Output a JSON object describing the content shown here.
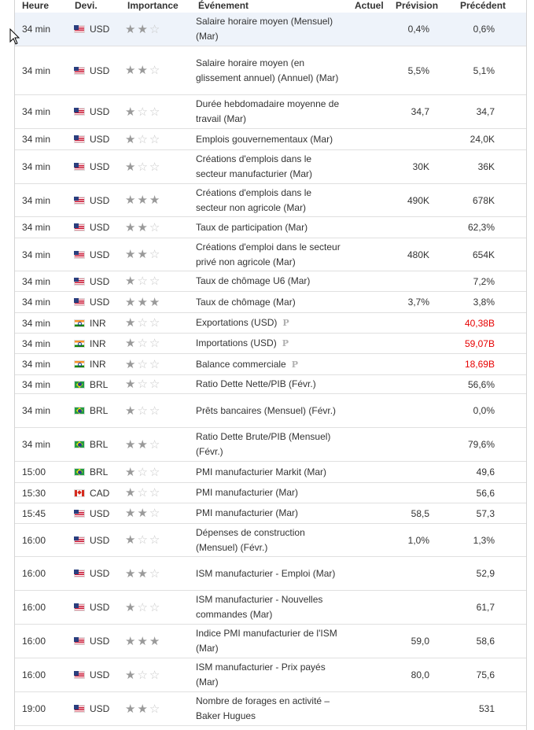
{
  "headers": {
    "time": "Heure",
    "currency": "Devi.",
    "importance": "Importance",
    "event": "Événement",
    "actual": "Actuel",
    "forecast": "Prévision",
    "previous": "Précédent"
  },
  "rows": [
    {
      "time": "34 min",
      "flag": "us",
      "currency": "USD",
      "stars": 2,
      "event": "Salaire horaire moyen (Mensuel) (Mar)",
      "prelim": "",
      "actual": "",
      "forecast": "0,4%",
      "previous": "0,6%",
      "prev_neg": false
    },
    {
      "time": "34 min",
      "flag": "us",
      "currency": "USD",
      "stars": 2,
      "event": "Salaire horaire moyen (en glissement annuel) (Annuel) (Mar)",
      "prelim": "",
      "actual": "",
      "forecast": "5,5%",
      "previous": "5,1%",
      "prev_neg": false
    },
    {
      "time": "34 min",
      "flag": "us",
      "currency": "USD",
      "stars": 1,
      "event": "Durée hebdomadaire moyenne de travail (Mar)",
      "prelim": "",
      "actual": "",
      "forecast": "34,7",
      "previous": "34,7",
      "prev_neg": false
    },
    {
      "time": "34 min",
      "flag": "us",
      "currency": "USD",
      "stars": 1,
      "event": "Emplois gouvernementaux (Mar)",
      "prelim": "",
      "actual": "",
      "forecast": "",
      "previous": "24,0K",
      "prev_neg": false
    },
    {
      "time": "34 min",
      "flag": "us",
      "currency": "USD",
      "stars": 1,
      "event": "Créations d'emplois dans le secteur manufacturier (Mar)",
      "prelim": "",
      "actual": "",
      "forecast": "30K",
      "previous": "36K",
      "prev_neg": false
    },
    {
      "time": "34 min",
      "flag": "us",
      "currency": "USD",
      "stars": 3,
      "event": "Créations d'emplois dans le secteur non agricole (Mar)",
      "prelim": "",
      "actual": "",
      "forecast": "490K",
      "previous": "678K",
      "prev_neg": false
    },
    {
      "time": "34 min",
      "flag": "us",
      "currency": "USD",
      "stars": 2,
      "event": "Taux de participation (Mar)",
      "prelim": "",
      "actual": "",
      "forecast": "",
      "previous": "62,3%",
      "prev_neg": false
    },
    {
      "time": "34 min",
      "flag": "us",
      "currency": "USD",
      "stars": 2,
      "event": "Créations d'emploi dans le secteur privé non agricole (Mar)",
      "prelim": "",
      "actual": "",
      "forecast": "480K",
      "previous": "654K",
      "prev_neg": false
    },
    {
      "time": "34 min",
      "flag": "us",
      "currency": "USD",
      "stars": 1,
      "event": "Taux de chômage U6 (Mar)",
      "prelim": "",
      "actual": "",
      "forecast": "",
      "previous": "7,2%",
      "prev_neg": false
    },
    {
      "time": "34 min",
      "flag": "us",
      "currency": "USD",
      "stars": 3,
      "event": "Taux de chômage (Mar)",
      "prelim": "",
      "actual": "",
      "forecast": "3,7%",
      "previous": "3,8%",
      "prev_neg": false
    },
    {
      "time": "34 min",
      "flag": "in",
      "currency": "INR",
      "stars": 1,
      "event": "Exportations (USD)",
      "prelim": "P",
      "actual": "",
      "forecast": "",
      "previous": "40,38B",
      "prev_neg": true
    },
    {
      "time": "34 min",
      "flag": "in",
      "currency": "INR",
      "stars": 1,
      "event": "Importations (USD)",
      "prelim": "P",
      "actual": "",
      "forecast": "",
      "previous": "59,07B",
      "prev_neg": true
    },
    {
      "time": "34 min",
      "flag": "in",
      "currency": "INR",
      "stars": 1,
      "event": "Balance commerciale",
      "prelim": "P",
      "actual": "",
      "forecast": "",
      "previous": "18,69B",
      "prev_neg": true
    },
    {
      "time": "34 min",
      "flag": "br",
      "currency": "BRL",
      "stars": 1,
      "event": "Ratio Dette Nette/PIB (Févr.)",
      "prelim": "",
      "actual": "",
      "forecast": "",
      "previous": "56,6%",
      "prev_neg": false
    },
    {
      "time": "34 min",
      "flag": "br",
      "currency": "BRL",
      "stars": 1,
      "event": "Prêts bancaires (Mensuel) (Févr.)",
      "prelim": "",
      "actual": "",
      "forecast": "",
      "previous": "0,0%",
      "prev_neg": false
    },
    {
      "time": "34 min",
      "flag": "br",
      "currency": "BRL",
      "stars": 2,
      "event": "Ratio Dette Brute/PIB (Mensuel) (Févr.)",
      "prelim": "",
      "actual": "",
      "forecast": "",
      "previous": "79,6%",
      "prev_neg": false
    },
    {
      "time": "15:00",
      "flag": "br",
      "currency": "BRL",
      "stars": 1,
      "event": "PMI manufacturier Markit (Mar)",
      "prelim": "",
      "actual": "",
      "forecast": "",
      "previous": "49,6",
      "prev_neg": false
    },
    {
      "time": "15:30",
      "flag": "ca",
      "currency": "CAD",
      "stars": 1,
      "event": "PMI manufacturier (Mar)",
      "prelim": "",
      "actual": "",
      "forecast": "",
      "previous": "56,6",
      "prev_neg": false
    },
    {
      "time": "15:45",
      "flag": "us",
      "currency": "USD",
      "stars": 2,
      "event": "PMI manufacturier (Mar)",
      "prelim": "",
      "actual": "",
      "forecast": "58,5",
      "previous": "57,3",
      "prev_neg": false
    },
    {
      "time": "16:00",
      "flag": "us",
      "currency": "USD",
      "stars": 1,
      "event": "Dépenses de construction (Mensuel) (Févr.)",
      "prelim": "",
      "actual": "",
      "forecast": "1,0%",
      "previous": "1,3%",
      "prev_neg": false
    },
    {
      "time": "16:00",
      "flag": "us",
      "currency": "USD",
      "stars": 2,
      "event": "ISM manufacturier - Emploi (Mar)",
      "prelim": "",
      "actual": "",
      "forecast": "",
      "previous": "52,9",
      "prev_neg": false
    },
    {
      "time": "16:00",
      "flag": "us",
      "currency": "USD",
      "stars": 1,
      "event": "ISM manufacturier - Nouvelles commandes (Mar)",
      "prelim": "",
      "actual": "",
      "forecast": "",
      "previous": "61,7",
      "prev_neg": false
    },
    {
      "time": "16:00",
      "flag": "us",
      "currency": "USD",
      "stars": 3,
      "event": "Indice PMI manufacturier de l'ISM (Mar)",
      "prelim": "",
      "actual": "",
      "forecast": "59,0",
      "previous": "58,6",
      "prev_neg": false
    },
    {
      "time": "16:00",
      "flag": "us",
      "currency": "USD",
      "stars": 1,
      "event": "ISM manufacturier - Prix payés (Mar)",
      "prelim": "",
      "actual": "",
      "forecast": "80,0",
      "previous": "75,6",
      "prev_neg": false
    },
    {
      "time": "19:00",
      "flag": "us",
      "currency": "USD",
      "stars": 2,
      "event": "Nombre de forages en activité – Baker Hugues",
      "prelim": "",
      "actual": "",
      "forecast": "",
      "previous": "531",
      "prev_neg": false
    }
  ]
}
